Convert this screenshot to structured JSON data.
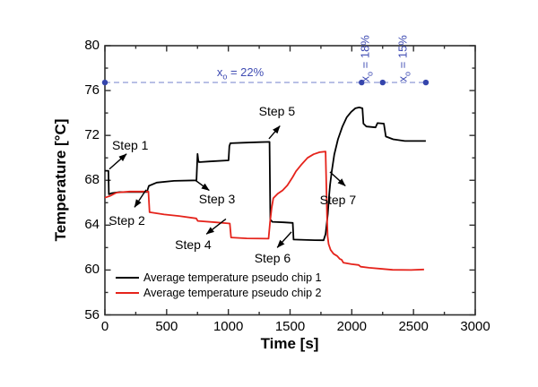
{
  "chart_data": {
    "type": "line",
    "title": "",
    "xlabel": "Time [s]",
    "ylabel": "Temperature [°C]",
    "xlim": [
      0,
      3000
    ],
    "ylim": [
      56,
      80
    ],
    "x_major_ticks": [
      0,
      500,
      1000,
      1500,
      2000,
      2500,
      3000
    ],
    "x_minor_ticks": [
      250,
      750,
      1250,
      1750,
      2250,
      2750
    ],
    "y_major_ticks": [
      56,
      60,
      64,
      68,
      72,
      76,
      80
    ],
    "y_minor_ticks": [
      58,
      62,
      66,
      70,
      74,
      78
    ],
    "grid": false,
    "legend_position": "lower-left-inside",
    "frame_color": "#2f2f2f",
    "series": [
      {
        "name": "Average temperature pseudo chip 1",
        "color": "#000000",
        "points": [
          [
            0,
            68.85
          ],
          [
            28,
            68.85
          ],
          [
            32,
            66.75
          ],
          [
            55,
            66.85
          ],
          [
            120,
            66.95
          ],
          [
            340,
            66.95
          ],
          [
            356,
            67.5
          ],
          [
            420,
            67.8
          ],
          [
            560,
            67.95
          ],
          [
            742,
            68.0
          ],
          [
            750,
            70.35
          ],
          [
            756,
            69.8
          ],
          [
            762,
            69.62
          ],
          [
            850,
            69.68
          ],
          [
            1002,
            69.78
          ],
          [
            1008,
            71.05
          ],
          [
            1016,
            71.3
          ],
          [
            1120,
            71.35
          ],
          [
            1250,
            71.4
          ],
          [
            1334,
            71.42
          ],
          [
            1340,
            64.5
          ],
          [
            1356,
            64.3
          ],
          [
            1450,
            64.25
          ],
          [
            1522,
            64.2
          ],
          [
            1528,
            62.72
          ],
          [
            1700,
            62.66
          ],
          [
            1772,
            62.65
          ],
          [
            1788,
            63.2
          ],
          [
            1806,
            65.0
          ],
          [
            1816,
            66.6
          ],
          [
            1824,
            67.6
          ],
          [
            1838,
            68.8
          ],
          [
            1858,
            70.3
          ],
          [
            1888,
            71.65
          ],
          [
            1924,
            72.8
          ],
          [
            1958,
            73.6
          ],
          [
            1995,
            74.1
          ],
          [
            2028,
            74.42
          ],
          [
            2060,
            74.5
          ],
          [
            2086,
            74.42
          ],
          [
            2094,
            73.05
          ],
          [
            2118,
            72.8
          ],
          [
            2192,
            72.72
          ],
          [
            2208,
            73.1
          ],
          [
            2260,
            73.05
          ],
          [
            2276,
            71.9
          ],
          [
            2335,
            71.65
          ],
          [
            2430,
            71.5
          ],
          [
            2600,
            71.5
          ]
        ]
      },
      {
        "name": "Average temperature pseudo chip 2",
        "color": "#e5231b",
        "points": [
          [
            0,
            66.45
          ],
          [
            40,
            66.6
          ],
          [
            95,
            66.9
          ],
          [
            200,
            67.0
          ],
          [
            352,
            67.0
          ],
          [
            362,
            65.15
          ],
          [
            480,
            64.95
          ],
          [
            600,
            64.82
          ],
          [
            740,
            64.6
          ],
          [
            752,
            64.38
          ],
          [
            900,
            64.25
          ],
          [
            1012,
            64.15
          ],
          [
            1022,
            62.9
          ],
          [
            1150,
            62.82
          ],
          [
            1326,
            62.8
          ],
          [
            1338,
            64.3
          ],
          [
            1350,
            65.5
          ],
          [
            1364,
            66.4
          ],
          [
            1400,
            66.8
          ],
          [
            1440,
            67.1
          ],
          [
            1478,
            67.55
          ],
          [
            1522,
            68.3
          ],
          [
            1548,
            68.8
          ],
          [
            1596,
            69.45
          ],
          [
            1642,
            70.0
          ],
          [
            1690,
            70.32
          ],
          [
            1740,
            70.5
          ],
          [
            1788,
            70.56
          ],
          [
            1800,
            64.5
          ],
          [
            1804,
            63.0
          ],
          [
            1812,
            62.3
          ],
          [
            1828,
            61.8
          ],
          [
            1852,
            61.45
          ],
          [
            1882,
            61.25
          ],
          [
            1902,
            61.0
          ],
          [
            1918,
            60.92
          ],
          [
            1932,
            60.65
          ],
          [
            1998,
            60.52
          ],
          [
            2056,
            60.45
          ],
          [
            2072,
            60.3
          ],
          [
            2140,
            60.2
          ],
          [
            2248,
            60.1
          ],
          [
            2330,
            60.02
          ],
          [
            2480,
            60.0
          ],
          [
            2585,
            60.05
          ]
        ]
      }
    ],
    "step_annotations": [
      {
        "label": "Step 1",
        "text_at": [
          205,
          71.1
        ],
        "arrow_from": [
          36,
          69.0
        ],
        "arrow_to": [
          175,
          70.35
        ]
      },
      {
        "label": "Step 2",
        "text_at": [
          178,
          64.35
        ],
        "arrow_from": [
          334,
          67.15
        ],
        "arrow_to": [
          240,
          65.6
        ]
      },
      {
        "label": "Step 3",
        "text_at": [
          908,
          66.3
        ],
        "arrow_from": [
          733,
          68.0
        ],
        "arrow_to": [
          845,
          67.1
        ]
      },
      {
        "label": "Step 4",
        "text_at": [
          715,
          62.25
        ],
        "arrow_from": [
          980,
          64.55
        ],
        "arrow_to": [
          822,
          63.2
        ]
      },
      {
        "label": "Step 5",
        "text_at": [
          1394,
          74.1
        ],
        "arrow_from": [
          1329,
          71.7
        ],
        "arrow_to": [
          1418,
          72.85
        ]
      },
      {
        "label": "Step 6",
        "text_at": [
          1358,
          61.05
        ],
        "arrow_from": [
          1511,
          63.4
        ],
        "arrow_to": [
          1396,
          62.0
        ]
      },
      {
        "label": "Step 7",
        "text_at": [
          1888,
          66.25
        ],
        "arrow_from": [
          1823,
          68.75
        ],
        "arrow_to": [
          1948,
          67.5
        ]
      }
    ],
    "oxygen_annotation": {
      "line_y": 76.72,
      "line_x_start": 0,
      "line_x_end": 2600,
      "dot_x": [
        0,
        2080,
        2250,
        2600
      ],
      "text_color": "#3f4cb3",
      "dot_color": "#3545ac",
      "line_color": "#9aa4da",
      "labels": [
        {
          "base": "x",
          "sub": "o",
          "rest": " = 22%",
          "x": 1097,
          "y": 77.6,
          "rotated": false
        },
        {
          "base": "x",
          "sub": "o",
          "rest": " = 18%",
          "x": 2128,
          "y": 79.05,
          "rotated": true
        },
        {
          "base": "x",
          "sub": "o",
          "rest": " = 15%",
          "x": 2433,
          "y": 79.05,
          "rotated": true
        }
      ]
    }
  }
}
